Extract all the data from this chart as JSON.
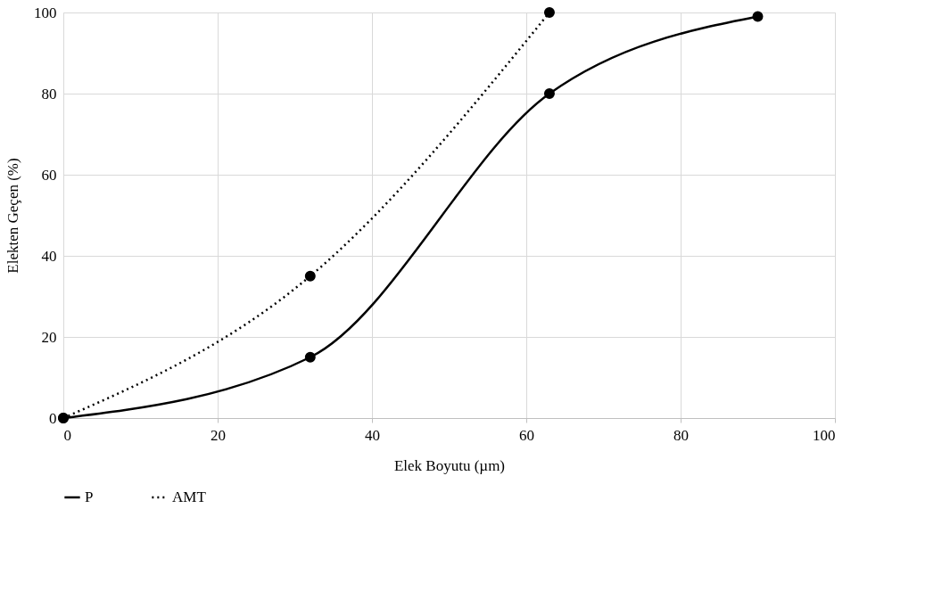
{
  "chart_data": {
    "type": "line",
    "xlabel": "Elek Boyutu (µm)",
    "ylabel": "Elekten Geçen (%)",
    "xlim": [
      0,
      100
    ],
    "xticks": [
      0,
      20,
      40,
      60,
      80,
      100
    ],
    "ylim": [
      0,
      100
    ],
    "yticks": [
      0,
      20,
      40,
      60,
      80,
      100
    ],
    "grid": true,
    "legend": "bottom",
    "marker": "circle",
    "series": [
      {
        "name": "P",
        "color": "#000000",
        "x": [
          0,
          32,
          63,
          90
        ],
        "values": [
          0,
          15,
          80,
          99
        ],
        "line_style": "solid"
      },
      {
        "name": "AMT",
        "color": "#000000",
        "x": [
          0,
          32,
          63
        ],
        "values": [
          0,
          35,
          100
        ],
        "line_style": "dotted"
      }
    ]
  }
}
